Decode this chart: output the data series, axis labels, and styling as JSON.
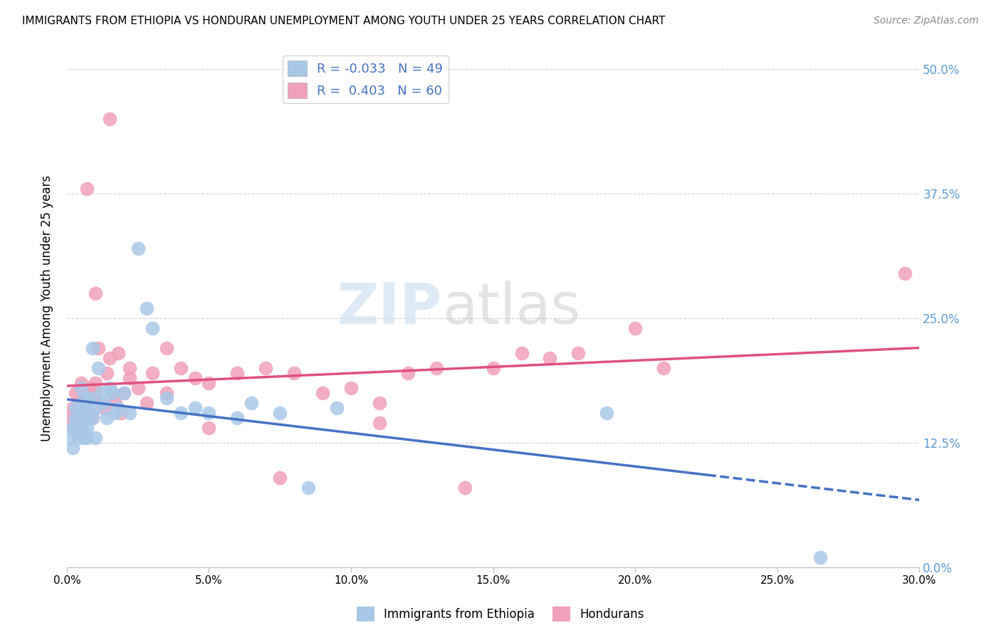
{
  "title": "IMMIGRANTS FROM ETHIOPIA VS HONDURAN UNEMPLOYMENT AMONG YOUTH UNDER 25 YEARS CORRELATION CHART",
  "source": "Source: ZipAtlas.com",
  "ylabel_label": "Unemployment Among Youth under 25 years",
  "legend_label1": "Immigrants from Ethiopia",
  "legend_label2": "Hondurans",
  "R1": "-0.033",
  "N1": "49",
  "R2": "0.403",
  "N2": "60",
  "color_blue": "#a8c8e8",
  "color_pink": "#f0a0b8",
  "line_color_blue": "#4472c4",
  "line_color_pink": "#e05080",
  "watermark_zip": "ZIP",
  "watermark_atlas": "atlas",
  "xlim": [
    0.0,
    0.3
  ],
  "ylim": [
    0.06,
    0.52
  ],
  "ytick_vals": [
    0.0,
    0.125,
    0.25,
    0.375,
    0.5
  ],
  "ytick_labels": [
    "0.0%",
    "12.5%",
    "25.0%",
    "37.5%",
    "50.0%"
  ],
  "xtick_vals": [
    0.0,
    0.05,
    0.1,
    0.15,
    0.2,
    0.25,
    0.3
  ],
  "xtick_labels": [
    "0.0%",
    "5.0%",
    "10.0%",
    "15.0%",
    "20.0%",
    "25.0%",
    "30.0%"
  ],
  "blue_scatter_x": [
    0.001,
    0.002,
    0.002,
    0.003,
    0.003,
    0.003,
    0.004,
    0.004,
    0.004,
    0.005,
    0.005,
    0.005,
    0.005,
    0.006,
    0.006,
    0.006,
    0.007,
    0.007,
    0.007,
    0.008,
    0.008,
    0.009,
    0.009,
    0.01,
    0.01,
    0.011,
    0.012,
    0.013,
    0.014,
    0.015,
    0.016,
    0.017,
    0.018,
    0.02,
    0.022,
    0.025,
    0.028,
    0.03,
    0.035,
    0.04,
    0.045,
    0.05,
    0.06,
    0.065,
    0.075,
    0.085,
    0.095,
    0.19,
    0.265
  ],
  "blue_scatter_y": [
    0.13,
    0.14,
    0.12,
    0.15,
    0.16,
    0.14,
    0.135,
    0.13,
    0.145,
    0.14,
    0.16,
    0.18,
    0.155,
    0.15,
    0.13,
    0.17,
    0.14,
    0.165,
    0.13,
    0.155,
    0.17,
    0.22,
    0.15,
    0.16,
    0.13,
    0.2,
    0.175,
    0.165,
    0.15,
    0.18,
    0.175,
    0.155,
    0.16,
    0.175,
    0.155,
    0.32,
    0.26,
    0.24,
    0.17,
    0.155,
    0.16,
    0.155,
    0.15,
    0.165,
    0.155,
    0.08,
    0.16,
    0.155,
    0.01
  ],
  "pink_scatter_x": [
    0.001,
    0.002,
    0.002,
    0.003,
    0.003,
    0.004,
    0.004,
    0.005,
    0.005,
    0.006,
    0.006,
    0.007,
    0.007,
    0.008,
    0.008,
    0.009,
    0.01,
    0.01,
    0.011,
    0.012,
    0.013,
    0.014,
    0.015,
    0.016,
    0.017,
    0.018,
    0.019,
    0.02,
    0.022,
    0.025,
    0.028,
    0.03,
    0.035,
    0.04,
    0.045,
    0.05,
    0.06,
    0.07,
    0.08,
    0.09,
    0.1,
    0.11,
    0.12,
    0.13,
    0.15,
    0.16,
    0.17,
    0.18,
    0.2,
    0.21,
    0.007,
    0.01,
    0.015,
    0.022,
    0.035,
    0.05,
    0.075,
    0.11,
    0.14,
    0.295
  ],
  "pink_scatter_y": [
    0.15,
    0.14,
    0.16,
    0.155,
    0.175,
    0.14,
    0.165,
    0.155,
    0.185,
    0.16,
    0.175,
    0.155,
    0.17,
    0.155,
    0.18,
    0.15,
    0.185,
    0.175,
    0.22,
    0.165,
    0.16,
    0.195,
    0.21,
    0.175,
    0.165,
    0.215,
    0.155,
    0.175,
    0.19,
    0.18,
    0.165,
    0.195,
    0.22,
    0.2,
    0.19,
    0.185,
    0.195,
    0.2,
    0.195,
    0.175,
    0.18,
    0.165,
    0.195,
    0.2,
    0.2,
    0.215,
    0.21,
    0.215,
    0.24,
    0.2,
    0.38,
    0.275,
    0.45,
    0.2,
    0.175,
    0.14,
    0.09,
    0.145,
    0.08,
    0.295
  ]
}
